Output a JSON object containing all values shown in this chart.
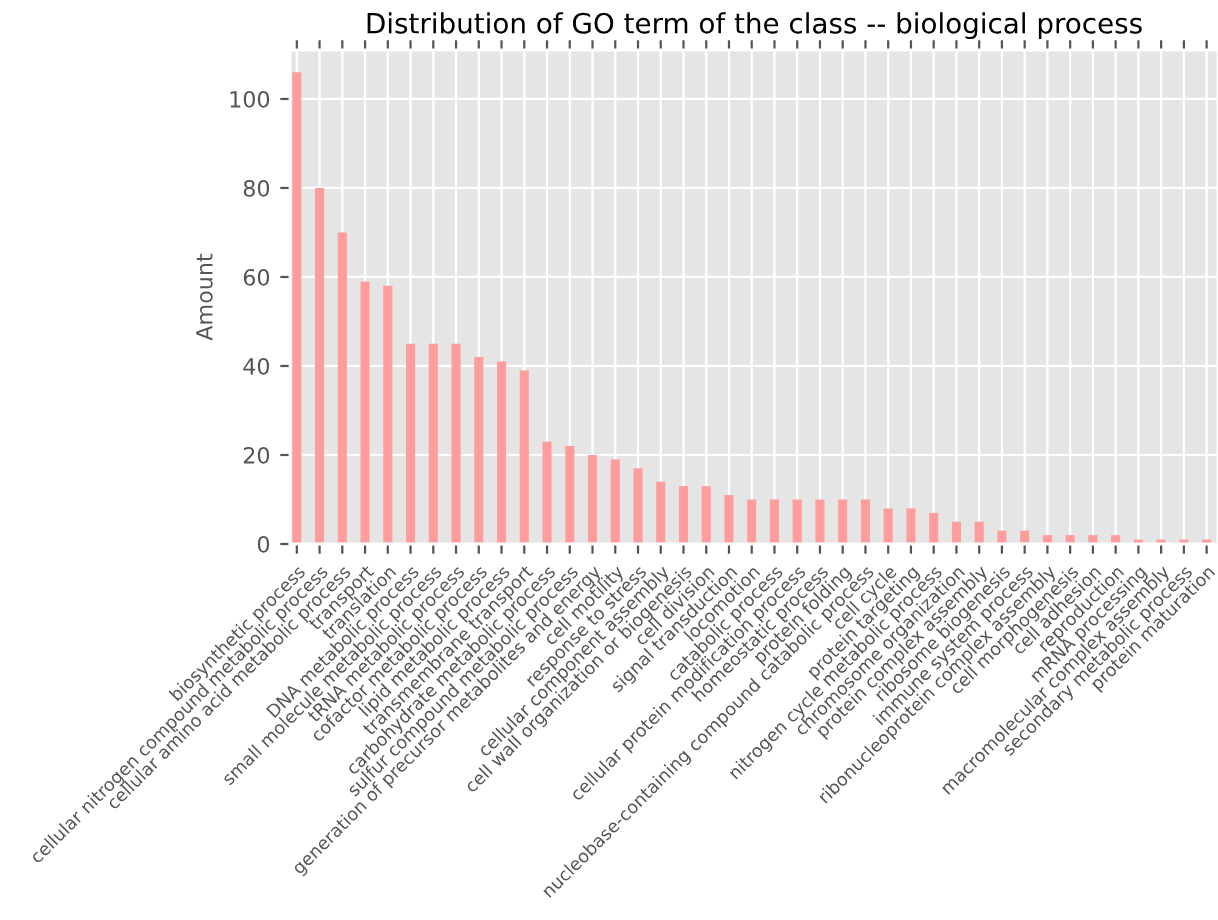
{
  "chart_data": {
    "type": "bar",
    "title": "Distribution of GO term of the class -- biological process",
    "ylabel": "Amount",
    "categories": [
      "biosynthetic process",
      "cellular nitrogen compound metabolic process",
      "cellular amino acid metabolic process",
      "transport",
      "translation",
      "DNA metabolic process",
      "small molecule metabolic process",
      "tRNA metabolic process",
      "cofactor metabolic process",
      "lipid metabolic process",
      "transmembrane transport",
      "carbohydrate metabolic process",
      "sulfur compound metabolic process",
      "generation of precursor metabolites and energy",
      "cell motility",
      "response to stress",
      "cellular component assembly",
      "cell wall organization or biogenesis",
      "cell division",
      "signal transduction",
      "locomotion",
      "catabolic process",
      "cellular protein modification process",
      "homeostatic process",
      "protein folding",
      "nucleobase-containing compound catabolic process",
      "cell cycle",
      "protein targeting",
      "nitrogen cycle metabolic process",
      "chromosome organization",
      "protein complex assembly",
      "ribosome biogenesis",
      "immune system process",
      "ribonucleoprotein complex assembly",
      "cell morphogenesis",
      "cell adhesion",
      "reproduction",
      "mRNA processing",
      "macromolecular complex assembly",
      "secondary metabolic process",
      "protein maturation"
    ],
    "values": [
      106,
      80,
      70,
      59,
      58,
      45,
      45,
      45,
      42,
      41,
      39,
      23,
      22,
      20,
      19,
      17,
      14,
      13,
      13,
      11,
      10,
      10,
      10,
      10,
      10,
      10,
      8,
      8,
      7,
      5,
      5,
      3,
      3,
      2,
      2,
      2,
      2,
      1,
      1,
      1,
      1
    ],
    "color": "#ff9d9d",
    "ylim": [
      0,
      111
    ],
    "yticks": [
      0,
      20,
      40,
      60,
      80,
      100
    ],
    "grid": true
  }
}
